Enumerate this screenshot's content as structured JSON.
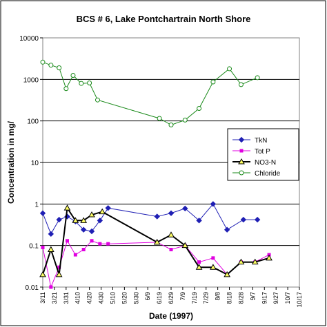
{
  "chart_data": {
    "type": "line",
    "title": "BCS # 6, Lake Pontchartrain North Shore",
    "xlabel": "Date (1997)",
    "ylabel": "Concentration in mg/",
    "y_scale": "log",
    "ylim": [
      0.01,
      10000
    ],
    "y_ticks": [
      "0.01",
      "0.1",
      "1",
      "10",
      "100",
      "1000",
      "10000"
    ],
    "grid": "horizontal major gridlines",
    "legend_position": "right",
    "x_ticks": [
      "3/11",
      "3/21",
      "3/31",
      "4/10",
      "4/20",
      "4/30",
      "5/10",
      "5/20",
      "5/30",
      "6/9",
      "6/19",
      "6/29",
      "7/9",
      "7/19",
      "7/29",
      "8/8",
      "8/18",
      "8/28",
      "9/7",
      "9/17",
      "9/27",
      "10/7",
      "10/17"
    ],
    "series": [
      {
        "name": "TkN",
        "color": "#1f1fb4",
        "marker": "diamond",
        "x": [
          "3/11",
          "3/18",
          "3/25",
          "4/1",
          "4/8",
          "4/15",
          "4/22",
          "4/29",
          "5/6",
          "6/17",
          "6/29",
          "7/11",
          "7/23",
          "8/4",
          "8/16",
          "8/30",
          "9/11"
        ],
        "values": [
          0.6,
          0.19,
          0.42,
          0.5,
          0.38,
          0.24,
          0.22,
          0.4,
          0.8,
          0.5,
          0.6,
          0.78,
          0.4,
          1.0,
          0.24,
          0.42,
          0.42
        ]
      },
      {
        "name": "Tot P",
        "color": "#e000e0",
        "marker": "square",
        "x": [
          "3/11",
          "3/18",
          "3/25",
          "4/1",
          "4/8",
          "4/15",
          "4/22",
          "4/29",
          "5/6",
          "6/17",
          "6/29",
          "7/11",
          "7/23",
          "8/4",
          "8/16",
          "8/28",
          "9/9",
          "9/21"
        ],
        "values": [
          0.09,
          0.01,
          0.03,
          0.13,
          0.06,
          0.08,
          0.13,
          0.11,
          0.11,
          0.12,
          0.08,
          0.1,
          0.04,
          0.05,
          0.02,
          0.04,
          0.04,
          0.06
        ]
      },
      {
        "name": "NO3-N",
        "color": "#000000",
        "marker": "triangle",
        "x": [
          "3/11",
          "3/18",
          "3/25",
          "4/1",
          "4/8",
          "4/15",
          "4/22",
          "5/1",
          "6/17",
          "6/29",
          "7/11",
          "7/23",
          "8/4",
          "8/16",
          "8/28",
          "9/9",
          "9/21"
        ],
        "values": [
          0.02,
          0.08,
          0.02,
          0.8,
          0.4,
          0.4,
          0.55,
          0.65,
          0.12,
          0.18,
          0.1,
          0.03,
          0.03,
          0.02,
          0.04,
          0.04,
          0.05
        ]
      },
      {
        "name": "Chloride",
        "color": "#1a8a1a",
        "marker": "circle",
        "x": [
          "3/11",
          "3/18",
          "3/25",
          "3/31",
          "4/6",
          "4/13",
          "4/20",
          "4/27",
          "6/19",
          "6/29",
          "7/11",
          "7/23",
          "8/4",
          "8/18",
          "8/28",
          "9/11"
        ],
        "values": [
          2600,
          2200,
          1900,
          600,
          1250,
          800,
          820,
          320,
          115,
          80,
          105,
          200,
          870,
          1800,
          750,
          1100
        ]
      }
    ]
  }
}
